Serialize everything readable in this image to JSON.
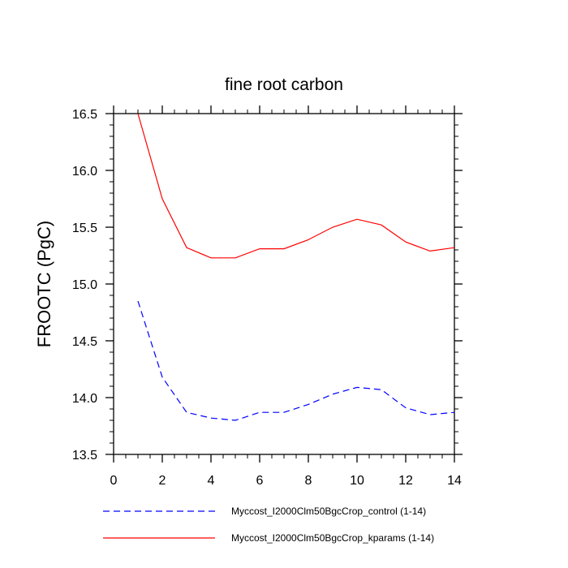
{
  "chart_data": {
    "type": "line",
    "title": "fine root carbon",
    "xlabel": "",
    "ylabel": "FROOTC  (PgC)",
    "xlim": [
      0,
      14
    ],
    "ylim": [
      13.5,
      16.5
    ],
    "xticks": [
      0,
      2,
      4,
      6,
      8,
      10,
      12,
      14
    ],
    "yticks": [
      13.5,
      14.0,
      14.5,
      15.0,
      15.5,
      16.0,
      16.5
    ],
    "ytick_labels": [
      "13.5",
      "14.0",
      "14.5",
      "15.0",
      "15.5",
      "16.0",
      "16.5"
    ],
    "grid": false,
    "legend_position": "bottom",
    "series": [
      {
        "name": "Myccost_I2000Clm50BgcCrop_control (1-14)",
        "color": "#0000ff",
        "style": "dashed",
        "x": [
          1,
          2,
          3,
          4,
          5,
          6,
          7,
          8,
          9,
          10,
          11,
          12,
          13,
          14
        ],
        "values": [
          14.85,
          14.18,
          13.87,
          13.82,
          13.8,
          13.87,
          13.87,
          13.94,
          14.03,
          14.09,
          14.07,
          13.91,
          13.85,
          13.87
        ]
      },
      {
        "name": "Myccost_I2000Clm50BgcCrop_kparams (1-14)",
        "color": "#ff0000",
        "style": "solid",
        "x": [
          1,
          2,
          3,
          4,
          5,
          6,
          7,
          8,
          9,
          10,
          11,
          12,
          13,
          14
        ],
        "values": [
          16.5,
          15.75,
          15.32,
          15.23,
          15.23,
          15.31,
          15.31,
          15.39,
          15.5,
          15.57,
          15.52,
          15.37,
          15.29,
          15.32
        ]
      }
    ]
  }
}
